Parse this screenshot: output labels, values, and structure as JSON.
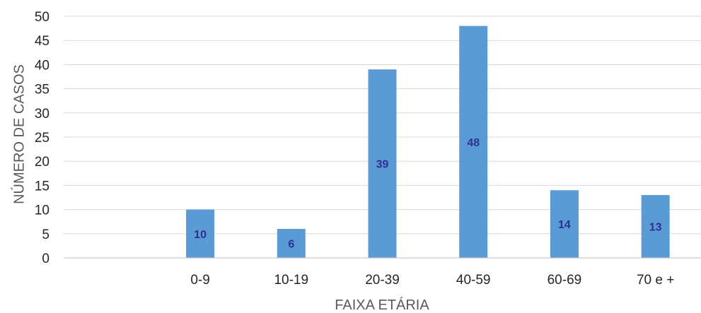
{
  "chart_data": {
    "type": "bar",
    "categories": [
      "",
      "0-9",
      "10-19",
      "20-39",
      "40-59",
      "60-69",
      "70 e +"
    ],
    "values": [
      null,
      10,
      6,
      39,
      48,
      14,
      13
    ],
    "data_labels": [
      "",
      "10",
      "6",
      "39",
      "48",
      "14",
      "13"
    ],
    "title": "",
    "xlabel": "FAIXA ETÁRIA",
    "ylabel": "NÚMERO DE CASOS",
    "ylim": [
      0,
      50
    ],
    "yticks": [
      "0",
      "5",
      "10",
      "15",
      "20",
      "25",
      "30",
      "35",
      "40",
      "45",
      "50"
    ],
    "grid": true,
    "legend": "none",
    "colors": {
      "bar": "#5b9bd5",
      "data_label": "#2e3192",
      "grid": "#d9d9d9",
      "axis": "#bfbfbf"
    }
  }
}
